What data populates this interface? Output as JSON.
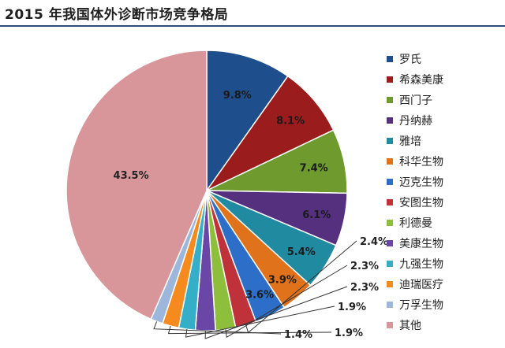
{
  "title": "2015 年我国体外诊断市场竞争格局",
  "chart_data": {
    "type": "pie",
    "title": "2015 年我国体外诊断市场竞争格局",
    "start_angle": "12 o'clock",
    "direction": "clockwise",
    "legend_position": "right",
    "slices": [
      {
        "label": "罗氏",
        "value": 9.8,
        "value_label": "9.8%",
        "color": "#1F4E8C"
      },
      {
        "label": "希森美康",
        "value": 8.1,
        "value_label": "8.1%",
        "color": "#9B1C1C"
      },
      {
        "label": "西门子",
        "value": 7.4,
        "value_label": "7.4%",
        "color": "#6E9A2E"
      },
      {
        "label": "丹纳赫",
        "value": 6.1,
        "value_label": "6.1%",
        "color": "#55307E"
      },
      {
        "label": "雅培",
        "value": 5.4,
        "value_label": "5.4%",
        "color": "#1F8AA0"
      },
      {
        "label": "科华生物",
        "value": 3.9,
        "value_label": "3.9%",
        "color": "#E0721C"
      },
      {
        "label": "迈克生物",
        "value": 3.6,
        "value_label": "3.6%",
        "color": "#2D6EC8"
      },
      {
        "label": "安图生物",
        "value": 2.4,
        "value_label": "2.4%",
        "color": "#C0323A"
      },
      {
        "label": "利德曼",
        "value": 2.3,
        "value_label": "2.3%",
        "color": "#8DBE3C"
      },
      {
        "label": "美康生物",
        "value": 2.3,
        "value_label": "2.3%",
        "color": "#6A46A6"
      },
      {
        "label": "九强生物",
        "value": 1.9,
        "value_label": "1.9%",
        "color": "#35AFC8"
      },
      {
        "label": "迪瑞医疗",
        "value": 1.9,
        "value_label": "1.9%",
        "color": "#F58A1F"
      },
      {
        "label": "万孚生物",
        "value": 1.4,
        "value_label": "1.4%",
        "color": "#9CB6DC"
      },
      {
        "label": "其他",
        "value": 43.5,
        "value_label": "43.5%",
        "color": "#D9969A"
      }
    ]
  }
}
